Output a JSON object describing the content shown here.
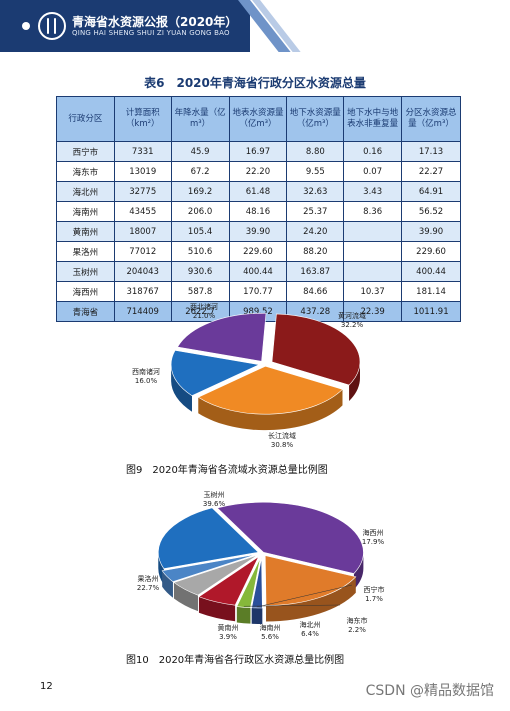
{
  "header": {
    "title": "青海省水资源公报（2020年）",
    "subtitle": "QING HAI SHENG SHUI ZI YUAN GONG BAO"
  },
  "table": {
    "title": "表6　2020年青海省行政分区水资源总量",
    "headers": [
      "行政分区",
      "计算面积（km²）",
      "年降水量（亿m³）",
      "地表水资源量（亿m³）",
      "地下水资源量（亿m³）",
      "地下水中与地表水非重复量",
      "分区水资源总量（亿m³）"
    ],
    "rows": [
      [
        "西宁市",
        "7331",
        "45.9",
        "16.97",
        "8.80",
        "0.16",
        "17.13"
      ],
      [
        "海东市",
        "13019",
        "67.2",
        "22.20",
        "9.55",
        "0.07",
        "22.27"
      ],
      [
        "海北州",
        "32775",
        "169.2",
        "61.48",
        "32.63",
        "3.43",
        "64.91"
      ],
      [
        "海南州",
        "43455",
        "206.0",
        "48.16",
        "25.37",
        "8.36",
        "56.52"
      ],
      [
        "黄南州",
        "18007",
        "105.4",
        "39.90",
        "24.20",
        "",
        "39.90"
      ],
      [
        "果洛州",
        "77012",
        "510.6",
        "229.60",
        "88.20",
        "",
        "229.60"
      ],
      [
        "玉树州",
        "204043",
        "930.6",
        "400.44",
        "163.87",
        "",
        "400.44"
      ],
      [
        "海西州",
        "318767",
        "587.8",
        "170.77",
        "84.66",
        "10.37",
        "181.14"
      ],
      [
        "青海省",
        "714409",
        "2622.7",
        "989.52",
        "437.28",
        "22.39",
        "1011.91"
      ]
    ]
  },
  "chart_data": [
    {
      "type": "pie",
      "title": "图9　2020年青海省各流域水资源总量比例图",
      "labels": [
        "黄河流域",
        "长江流域",
        "西南诸河",
        "西北诸河"
      ],
      "values": [
        32.2,
        30.8,
        16.0,
        21.0
      ],
      "value_labels": [
        "32.2%",
        "30.8%",
        "16.0%",
        "21.0%"
      ],
      "colors": [
        "#8b1a1a",
        "#f08a24",
        "#1f6fbf",
        "#6a3a9a"
      ]
    },
    {
      "type": "pie",
      "title": "图10　2020年青海省各行政区水资源总量比例图",
      "labels": [
        "玉树州",
        "海西州",
        "西宁市",
        "海东市",
        "海北州",
        "海南州",
        "黄南州",
        "果洛州"
      ],
      "values": [
        39.6,
        17.9,
        1.7,
        2.2,
        6.4,
        5.6,
        3.9,
        22.7
      ],
      "value_labels": [
        "39.6%",
        "17.9%",
        "1.7%",
        "2.2%",
        "6.4%",
        "5.6%",
        "3.9%",
        "22.7%"
      ],
      "colors": [
        "#6a3a9a",
        "#e07b2a",
        "#2a4f9a",
        "#86b83a",
        "#b0182a",
        "#a8a8a8",
        "#4b85c6",
        "#1f6fbf"
      ]
    }
  ],
  "page_number": "12",
  "watermark": "CSDN @精品数据馆"
}
